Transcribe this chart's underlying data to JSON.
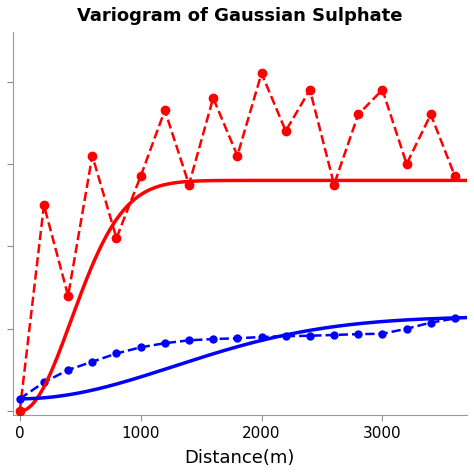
{
  "title": "Variogram of Gaussian Sulphate",
  "xlabel": "Distance(m)",
  "title_fontsize": 13,
  "label_fontsize": 13,
  "red_color": "#FF0000",
  "blue_color": "#0000FF",
  "x_max": 3700,
  "red_model_params": {
    "nugget": 0.0,
    "sill": 0.56,
    "range": 600
  },
  "blue_model_params": {
    "nugget": 0.03,
    "sill": 0.2,
    "range": 1800
  },
  "red_exp_x": [
    0,
    200,
    400,
    600,
    800,
    1000,
    1200,
    1400,
    1600,
    1800,
    2000,
    2200,
    2400,
    2600,
    2800,
    3000,
    3200,
    3400,
    3600
  ],
  "red_exp_y": [
    0.0,
    0.5,
    0.28,
    0.62,
    0.42,
    0.57,
    0.73,
    0.55,
    0.76,
    0.62,
    0.82,
    0.68,
    0.78,
    0.55,
    0.72,
    0.78,
    0.6,
    0.72,
    0.57
  ],
  "blue_exp_x": [
    0,
    200,
    400,
    600,
    800,
    1000,
    1200,
    1400,
    1600,
    1800,
    2000,
    2200,
    2400,
    2600,
    2800,
    3000,
    3200,
    3400,
    3600
  ],
  "blue_exp_y": [
    0.03,
    0.07,
    0.1,
    0.12,
    0.14,
    0.155,
    0.165,
    0.172,
    0.175,
    0.177,
    0.18,
    0.182,
    0.183,
    0.185,
    0.187,
    0.188,
    0.2,
    0.215,
    0.225
  ],
  "xticks": [
    0,
    1000,
    2000,
    3000
  ],
  "ylim": [
    -0.01,
    0.92
  ],
  "bg_color": "#FFFFFF"
}
